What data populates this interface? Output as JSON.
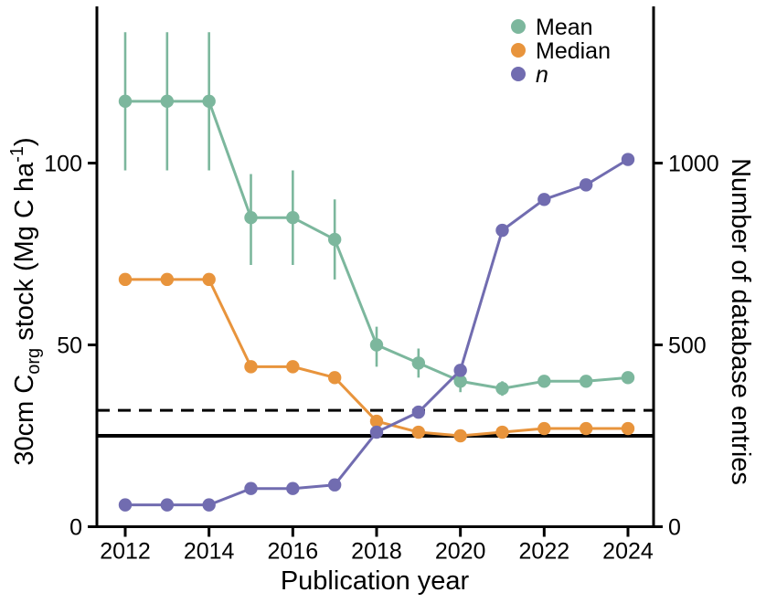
{
  "chart_data": {
    "type": "line",
    "title": "",
    "xlabel": "Publication year",
    "ylabel_left": {
      "p1": "30cm C",
      "p2": "org",
      "p3": " stock (Mg C ha",
      "p4": "-1",
      "p5": ")"
    },
    "ylabel_right": "Number of database entries",
    "x": [
      2012,
      2013,
      2014,
      2015,
      2016,
      2017,
      2018,
      2019,
      2020,
      2021,
      2022,
      2023,
      2024
    ],
    "x_ticks": [
      2012,
      2014,
      2016,
      2018,
      2020,
      2022,
      2024
    ],
    "left_axis": {
      "ticks": [
        0,
        50,
        100
      ],
      "range": [
        0,
        143
      ]
    },
    "right_axis": {
      "ticks": [
        0,
        500,
        1000
      ],
      "range": [
        0,
        1430
      ]
    },
    "grid": false,
    "legend_position": "top-right-inside",
    "series": [
      {
        "name": "Mean",
        "axis": "left",
        "color": "#7cb79d",
        "values": [
          117,
          117,
          117,
          85,
          85,
          79,
          50,
          45,
          40,
          38,
          40,
          40,
          41
        ],
        "err_low": [
          98,
          98,
          98,
          72,
          72,
          68,
          44,
          41,
          37,
          36,
          39,
          39,
          40
        ],
        "err_high": [
          136,
          136,
          136,
          97,
          98,
          90,
          55,
          49,
          43,
          40,
          41,
          41,
          42
        ]
      },
      {
        "name": "Median",
        "axis": "left",
        "color": "#e8943c",
        "values": [
          68,
          68,
          68,
          44,
          44,
          41,
          29,
          26,
          25,
          26,
          27,
          27,
          27
        ]
      },
      {
        "name": "n",
        "axis": "right",
        "color": "#716cb0",
        "values": [
          60,
          60,
          60,
          105,
          105,
          115,
          260,
          315,
          430,
          815,
          900,
          940,
          1010
        ]
      }
    ],
    "reference_lines": [
      {
        "style": "dashed",
        "axis": "left",
        "value": 32
      },
      {
        "style": "solid",
        "axis": "left",
        "value": 25
      }
    ]
  },
  "legend": {
    "items": [
      {
        "label": "Mean",
        "color": "#7cb79d",
        "italic": false
      },
      {
        "label": "Median",
        "color": "#e8943c",
        "italic": false
      },
      {
        "label": "n",
        "color": "#716cb0",
        "italic": true
      }
    ]
  },
  "colors": {
    "axis": "#000000",
    "background": "#ffffff"
  }
}
